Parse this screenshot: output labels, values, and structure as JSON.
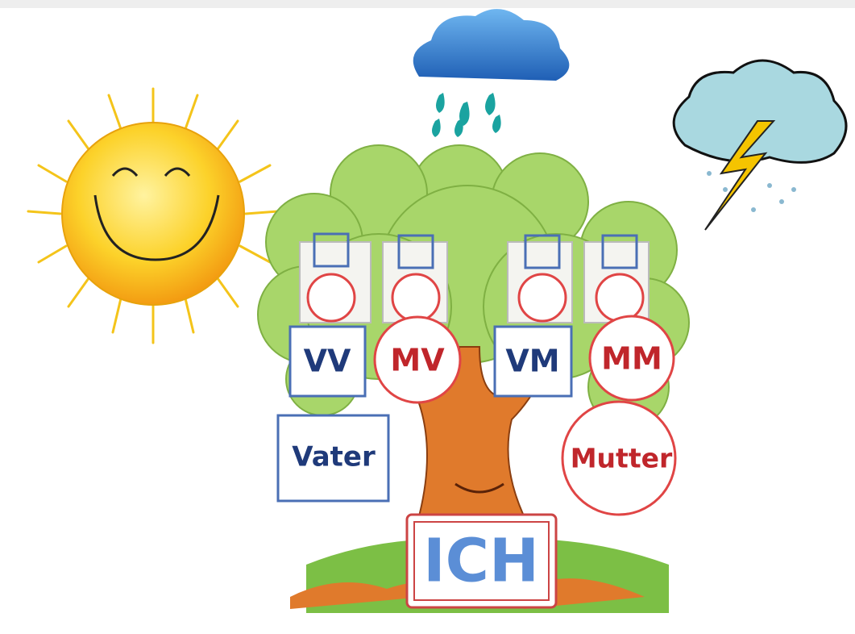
{
  "nodes": [
    {
      "label": "VV"
    },
    {
      "label": "MV"
    },
    {
      "label": "VM"
    },
    {
      "label": "MM"
    },
    {
      "label": "Vater"
    },
    {
      "label": "Mutter"
    },
    {
      "label": "ICH"
    }
  ]
}
